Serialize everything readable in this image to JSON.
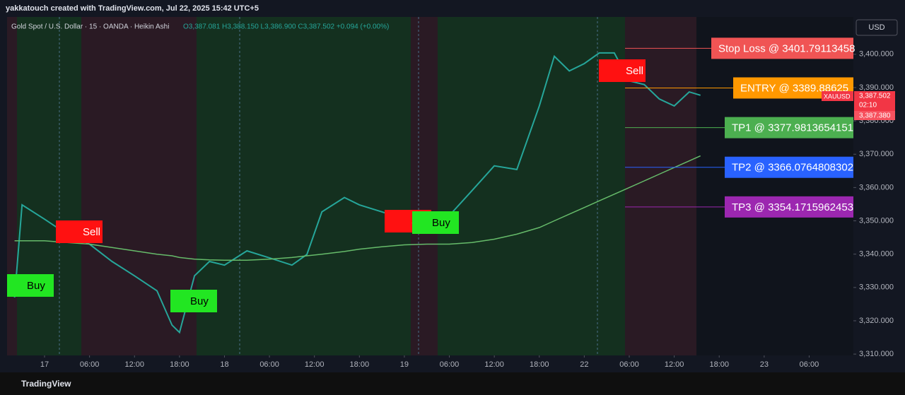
{
  "header": {
    "credit": "yakkatouch created with TradingView.com, Jul 22, 2025 15:42 UTC+5",
    "footer": "TradingView",
    "currency": "USD"
  },
  "chart_data": {
    "type": "line",
    "title": "Gold Spot / U.S. Dollar · 15 · OANDA · Heikin Ashi",
    "subtitle": "O3,387.081 H3,388.150 L3,386.900 C3,387.502 +0.094 (+0.00%)",
    "x": [
      -4,
      -3,
      0,
      3,
      6,
      9,
      12,
      15,
      17,
      18,
      20,
      22,
      24,
      27,
      30,
      33,
      35,
      37,
      40,
      42,
      45,
      48,
      51,
      54,
      57,
      60,
      63,
      66,
      68,
      70,
      72,
      74,
      76,
      78,
      80,
      82,
      84,
      86,
      87.5
    ],
    "series": [
      {
        "color": "#26a69a",
        "values": [
          3327,
          3354.8,
          3350.5,
          3346,
          3343,
          3337.8,
          3333.5,
          3329,
          3318.7,
          3316.5,
          3333.5,
          3337.8,
          3336.7,
          3341,
          3338.9,
          3336.7,
          3339.9,
          3352.7,
          3357,
          3354.8,
          3352.7,
          3350.5,
          3347.3,
          3351.6,
          3359,
          3366.5,
          3365.4,
          3384.5,
          3399.4,
          3395,
          3397.2,
          3400.4,
          3400.4,
          3392,
          3390.9,
          3386.6,
          3384.5,
          3388.7,
          3387.7
        ]
      },
      {
        "color": "#66bb6a",
        "values": [
          3344,
          3344,
          3344,
          3343.5,
          3343,
          3342,
          3341,
          3340,
          3339.5,
          3339,
          3338.5,
          3338.3,
          3338.2,
          3338.2,
          3338.5,
          3339,
          3339.5,
          3340,
          3340.8,
          3341.5,
          3342.2,
          3342.8,
          3343,
          3343,
          3343.5,
          3344.5,
          3346,
          3348,
          3350,
          3352,
          3354,
          3356,
          3358,
          3360,
          3362,
          3364,
          3366,
          3368,
          3369.5
        ]
      }
    ],
    "xlim": [
      -5,
      107.9
    ],
    "ylim": [
      3309.6,
      3411.2
    ],
    "xticks": [
      {
        "value": 0,
        "label": "17"
      },
      {
        "value": 6,
        "label": "06:00"
      },
      {
        "value": 12,
        "label": "12:00"
      },
      {
        "value": 18,
        "label": "18:00"
      },
      {
        "value": 24,
        "label": "18"
      },
      {
        "value": 30,
        "label": "06:00"
      },
      {
        "value": 36,
        "label": "12:00"
      },
      {
        "value": 42,
        "label": "18:00"
      },
      {
        "value": 48,
        "label": "19"
      },
      {
        "value": 54,
        "label": "06:00"
      },
      {
        "value": 60,
        "label": "12:00"
      },
      {
        "value": 66,
        "label": "18:00"
      },
      {
        "value": 72,
        "label": "22"
      },
      {
        "value": 78,
        "label": "06:00"
      },
      {
        "value": 84,
        "label": "12:00"
      },
      {
        "value": 90,
        "label": "18:00"
      },
      {
        "value": 96,
        "label": "23"
      },
      {
        "value": 102,
        "label": "06:00"
      }
    ],
    "yticks": [
      {
        "value": 3310,
        "label": "3,310.000"
      },
      {
        "value": 3320,
        "label": "3,320.000"
      },
      {
        "value": 3330,
        "label": "3,330.000"
      },
      {
        "value": 3340,
        "label": "3,340.000"
      },
      {
        "value": 3350,
        "label": "3,350.000"
      },
      {
        "value": 3360,
        "label": "3,360.000"
      },
      {
        "value": 3370,
        "label": "3,370.000"
      },
      {
        "value": 3380,
        "label": "3,380.000"
      },
      {
        "value": 3390,
        "label": "3,390.000"
      },
      {
        "value": 3400,
        "label": "3,400.000"
      }
    ],
    "levels": [
      {
        "label": "Stop Loss @ 3401.79113458",
        "value": 3401.79113458,
        "color": "#f05454"
      },
      {
        "label": "ENTRY @ 3389.88625",
        "value": 3389.88625,
        "color": "#ff9800"
      },
      {
        "label": "TP1 @ 3377.9813654151",
        "value": 3377.9813654151,
        "color": "#4caf50"
      },
      {
        "label": "TP2 @ 3366.0764808302",
        "value": 3366.0764808302,
        "color": "#2962ff"
      },
      {
        "label": "TP3 @ 3354.1715962453",
        "value": 3354.1715962453,
        "color": "#9c27b0"
      }
    ],
    "signals": [
      "Buy",
      "Sell",
      "Buy",
      "Sell",
      "Buy",
      "Sell"
    ],
    "price_tag": {
      "symbol": "XAUUSD",
      "price": "3,387.502",
      "countdown": "02:10",
      "low": "3,387.380"
    }
  }
}
